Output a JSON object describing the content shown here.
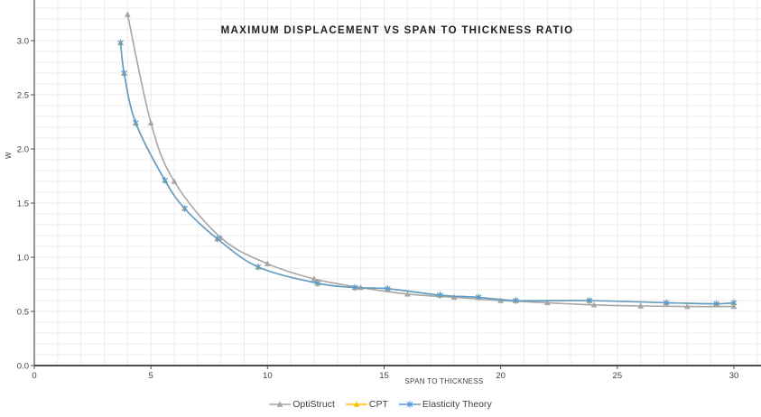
{
  "chart_data": {
    "type": "line",
    "title": "MAXIMUM DISPLACEMENT VS SPAN TO THICKNESS RATIO",
    "xlabel": "SPAN TO THICKNESS",
    "ylabel": "W",
    "xlim": [
      0,
      31.2
    ],
    "ylim": [
      0,
      3.375
    ],
    "x_ticks": [
      0,
      5,
      10,
      15,
      20,
      25,
      30
    ],
    "y_ticks": [
      0.0,
      0.5,
      1.0,
      1.5,
      2.0,
      2.5,
      3.0
    ],
    "x_minor_grid_step": 1,
    "y_minor_grid_step": 0.1,
    "grid": true,
    "grid_color": "#ebebeb",
    "axis_color": "#4d4d4d",
    "text_color": "#404040",
    "background_color": "#ffffff",
    "legend_position": "bottom-center",
    "series": [
      {
        "name": "OptiStruct",
        "color": "#A6A6A6",
        "marker": "triangle",
        "x": [
          4,
          5,
          6,
          8,
          10,
          12,
          14,
          16,
          18,
          20,
          22,
          24,
          26,
          28,
          30
        ],
        "y": [
          3.24,
          2.24,
          1.7,
          1.18,
          0.94,
          0.8,
          0.72,
          0.66,
          0.63,
          0.6,
          0.58,
          0.56,
          0.55,
          0.545,
          0.545
        ]
      },
      {
        "name": "CPT",
        "color": "#FFC000",
        "marker": "triangle",
        "x": [
          3.7,
          3.85,
          4.35,
          5.6,
          6.45,
          7.85,
          9.6,
          12.15,
          13.75,
          15.15,
          17.4,
          19.05,
          20.65,
          23.8,
          27.1,
          29.25,
          30
        ],
        "y": [
          2.98,
          2.7,
          2.24,
          1.71,
          1.45,
          1.17,
          0.91,
          0.76,
          0.72,
          0.71,
          0.65,
          0.63,
          0.6,
          0.6,
          0.58,
          0.57,
          0.58
        ]
      },
      {
        "name": "Elasticity Theory",
        "color": "#5B9BD5",
        "marker": "asterisk",
        "x": [
          3.7,
          3.85,
          4.35,
          5.6,
          6.45,
          7.85,
          9.6,
          12.15,
          13.75,
          15.15,
          17.4,
          19.05,
          20.65,
          23.8,
          27.1,
          29.25,
          30
        ],
        "y": [
          2.98,
          2.7,
          2.24,
          1.71,
          1.45,
          1.17,
          0.91,
          0.76,
          0.72,
          0.71,
          0.65,
          0.63,
          0.6,
          0.6,
          0.58,
          0.57,
          0.58
        ]
      }
    ]
  }
}
